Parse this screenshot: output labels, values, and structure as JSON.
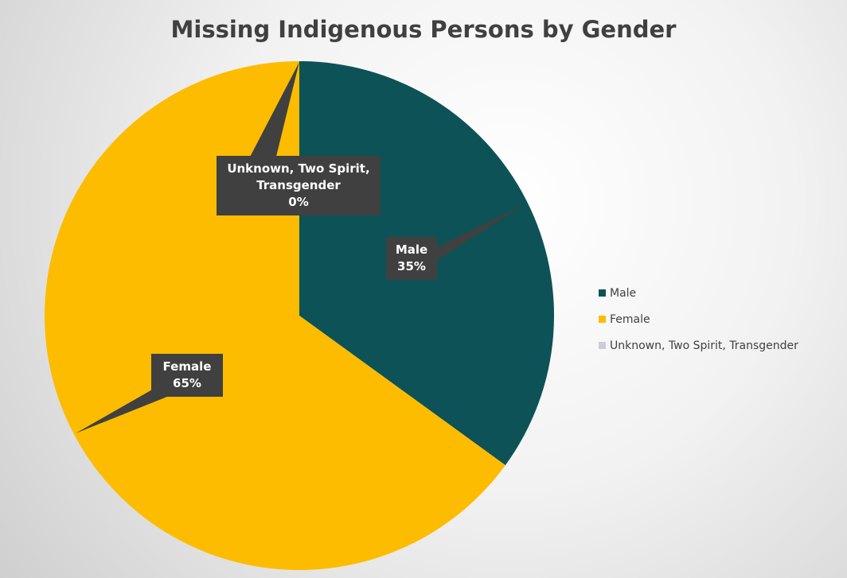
{
  "chart_data": {
    "type": "pie",
    "title": "Missing Indigenous Persons by Gender",
    "categories": [
      "Male",
      "Female",
      "Unknown, Two Spirit, Transgender"
    ],
    "values": [
      35,
      65,
      0
    ],
    "value_labels": [
      "35%",
      "65%",
      "0%"
    ],
    "colors": [
      "#0d5257",
      "#fdbc00",
      "#cfcbdd"
    ]
  }
}
